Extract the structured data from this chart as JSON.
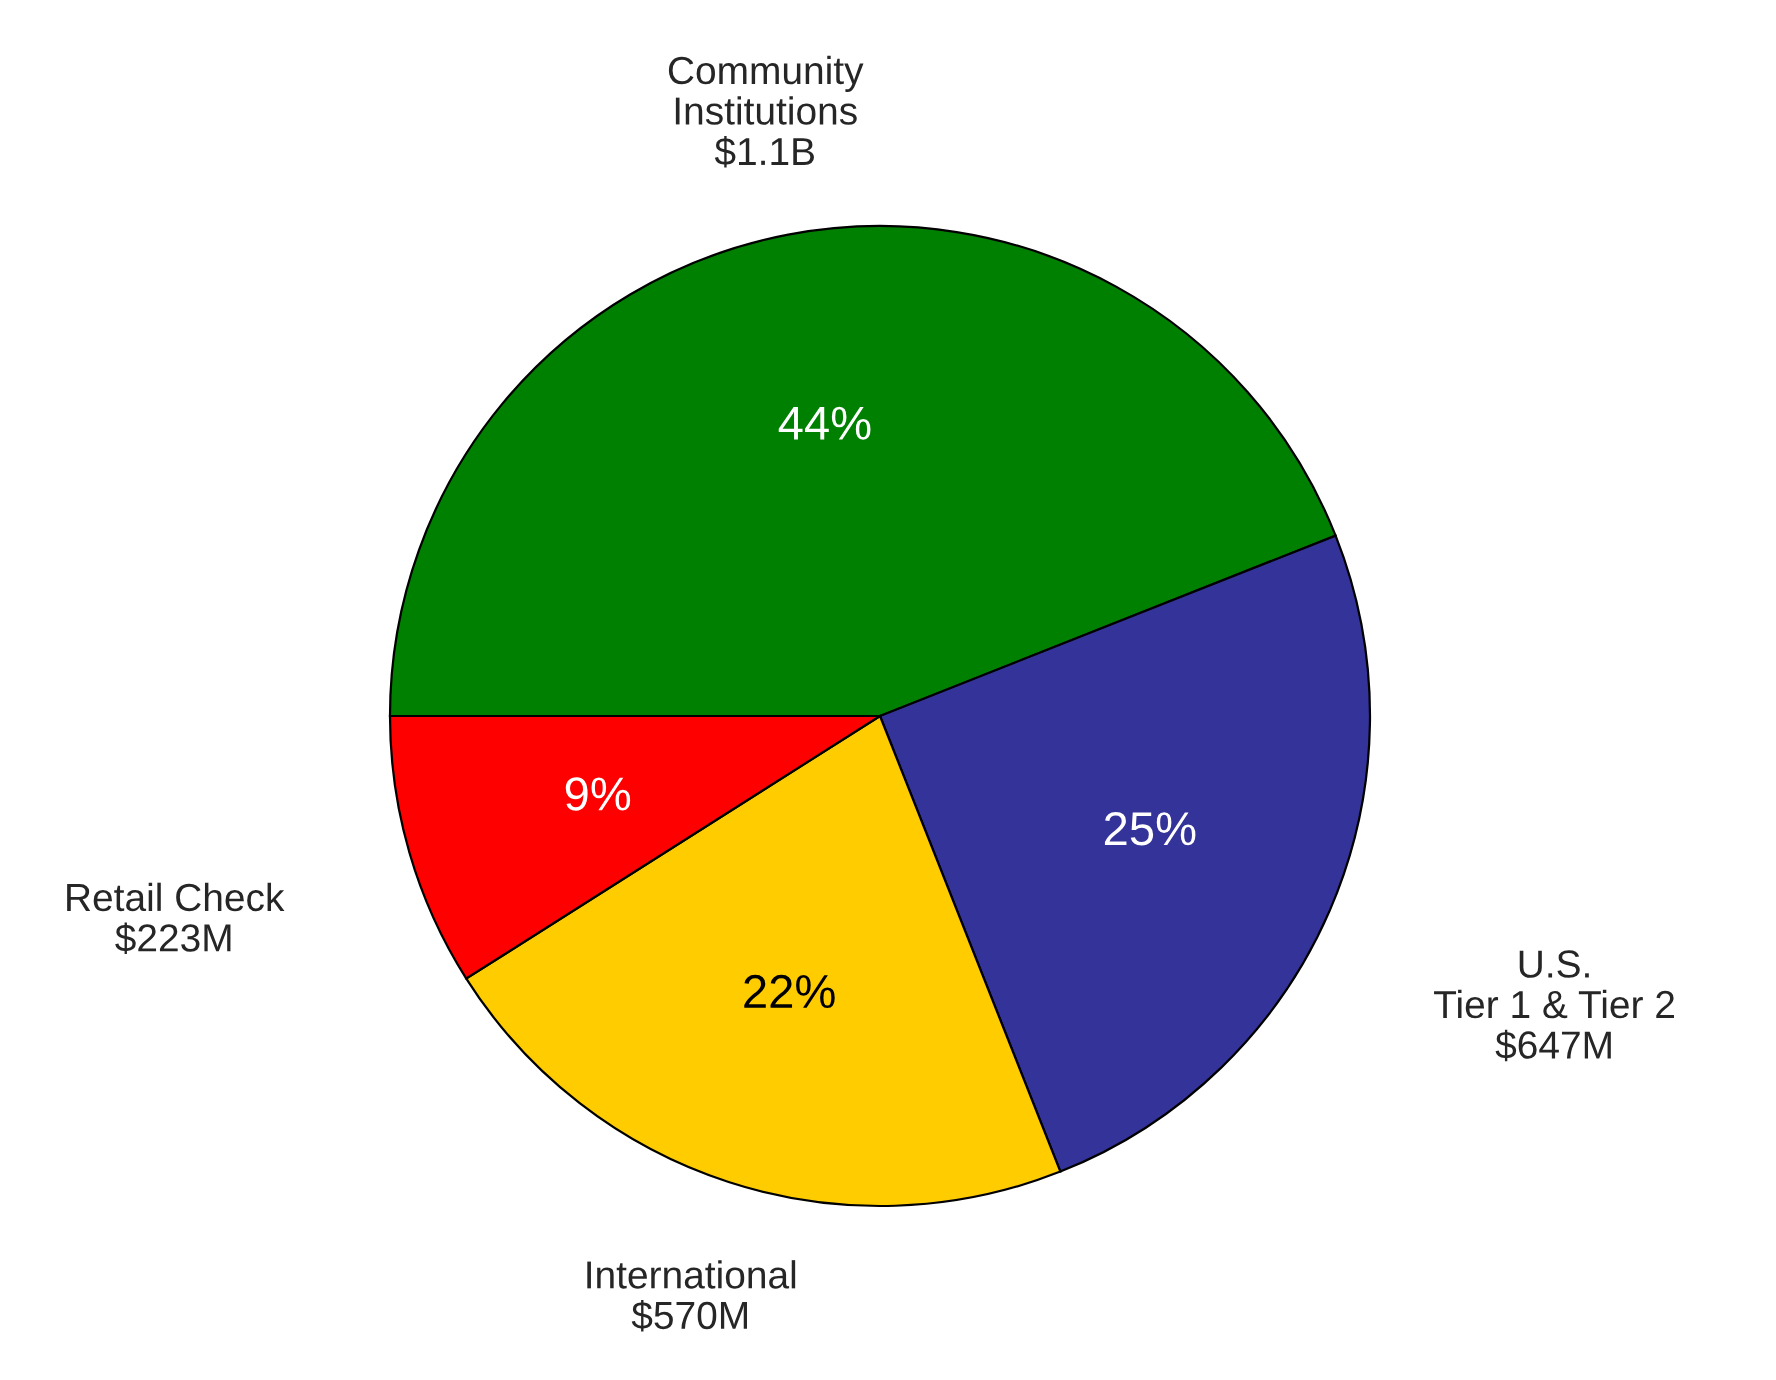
{
  "chart_data": {
    "type": "pie",
    "categories": [
      "Community\nInstitutions\n$1.1B",
      "U.S.\nTier 1 & Tier 2\n$647M",
      "International\n$570M",
      "Retail Check\n$223M"
    ],
    "values": [
      44,
      25,
      22,
      9
    ],
    "colors": [
      "#008000",
      "#333399",
      "#ffcc00",
      "#ff0000"
    ],
    "value_labels": [
      "44%",
      "25%",
      "22%",
      "9%"
    ],
    "legend": false
  }
}
